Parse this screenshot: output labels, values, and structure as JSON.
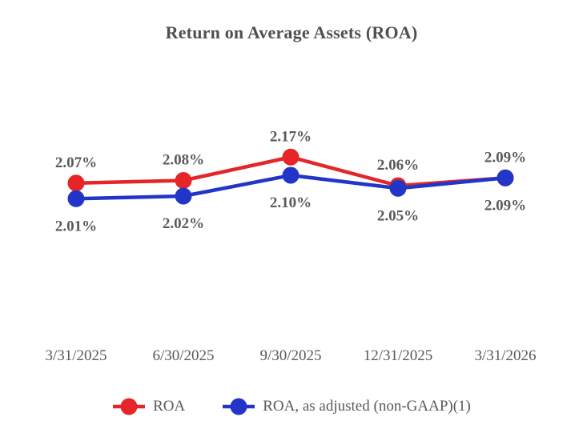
{
  "chart_data": {
    "type": "line",
    "title": "Return on Average Assets (ROA)",
    "categories": [
      "3/31/2025",
      "6/30/2025",
      "9/30/2025",
      "12/31/2025",
      "3/31/2026"
    ],
    "series": [
      {
        "name": "ROA",
        "color": "#e52528",
        "values": [
          2.07,
          2.08,
          2.17,
          2.06,
          2.09
        ],
        "labels": [
          "2.07%",
          "2.08%",
          "2.17%",
          "2.06%",
          "2.09%"
        ],
        "label_position": "above"
      },
      {
        "name": "ROA, as adjusted (non-GAAP)(1)",
        "color": "#2136c9",
        "values": [
          2.01,
          2.02,
          2.1,
          2.05,
          2.09
        ],
        "labels": [
          "2.01%",
          "2.02%",
          "2.10%",
          "2.05%",
          "2.09%"
        ],
        "label_position": "below"
      }
    ],
    "ylim": [
      1.75,
      2.35
    ],
    "grid": false,
    "legend_position": "bottom",
    "text_color": "#595959"
  }
}
